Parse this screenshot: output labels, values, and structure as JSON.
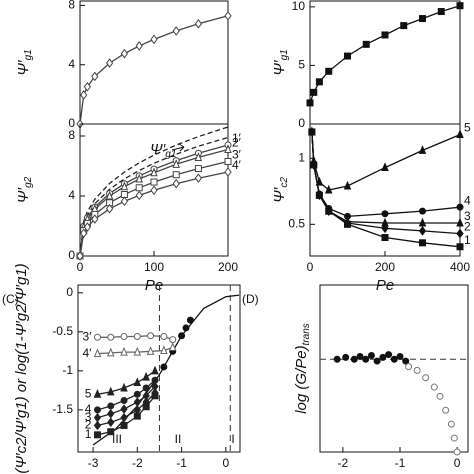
{
  "chart_data": [
    {
      "type": "scatter",
      "xlim": [
        0,
        200
      ],
      "ylim": [
        0,
        8.3
      ],
      "yticks": [
        0,
        4,
        8
      ],
      "y_label": "Ψ′",
      "y_label_sub": "g1",
      "series": [
        {
          "color": "#444444",
          "line": "solid",
          "marker": "open-diamond",
          "x": [
            0,
            5,
            10,
            20,
            40,
            60,
            80,
            100,
            130,
            160,
            200
          ],
          "values": [
            0,
            1.96,
            2.51,
            3.21,
            4.11,
            4.75,
            5.27,
            5.71,
            6.28,
            6.76,
            7.3
          ]
        }
      ]
    },
    {
      "type": "scatter",
      "xlim": [
        0,
        200
      ],
      "ylim": [
        0,
        8.8
      ],
      "xticks": [
        0,
        100,
        200
      ],
      "yticks": [
        0,
        4,
        8
      ],
      "x_label": "Pe",
      "y_label": "Ψ′",
      "y_label_sub": "g2",
      "annotations": [
        {
          "text": "Ψ′",
          "sub": "g1"
        }
      ],
      "series": [
        {
          "color": "#222222",
          "line": "dashed",
          "x": [
            0,
            5,
            10,
            20,
            40,
            60,
            80,
            100,
            130,
            160,
            200
          ],
          "values": [
            0,
            2.31,
            2.96,
            3.78,
            4.84,
            5.6,
            6.21,
            6.73,
            7.4,
            7.96,
            8.6
          ]
        },
        {
          "color": "#222222",
          "line": "dashed",
          "x": [
            0,
            5,
            10,
            20,
            40,
            60,
            80,
            100,
            130,
            160,
            200
          ],
          "values": [
            0,
            2.13,
            2.72,
            3.48,
            4.45,
            5.14,
            5.7,
            6.18,
            6.79,
            7.32,
            7.9
          ]
        },
        {
          "color": "#444444",
          "line": "solid",
          "marker": "open-circle",
          "label": "1′",
          "x": [
            0,
            5,
            10,
            20,
            40,
            60,
            80,
            100,
            130,
            160,
            200
          ],
          "values": [
            0,
            1.99,
            2.55,
            3.26,
            4.17,
            4.82,
            5.34,
            5.79,
            6.36,
            6.85,
            7.4
          ]
        },
        {
          "color": "#444444",
          "line": "solid",
          "marker": "open-triangle",
          "label": "2′",
          "x": [
            0,
            5,
            10,
            20,
            40,
            60,
            80,
            100,
            130,
            160,
            200
          ],
          "values": [
            0,
            1.91,
            2.44,
            3.12,
            4.0,
            4.62,
            5.13,
            5.55,
            6.11,
            6.57,
            7.1
          ]
        },
        {
          "color": "#444444",
          "line": "solid",
          "marker": "open-square",
          "label": "3′",
          "x": [
            0,
            5,
            10,
            20,
            40,
            60,
            80,
            100,
            130,
            160,
            200
          ],
          "values": [
            0,
            1.69,
            2.17,
            2.77,
            3.55,
            4.1,
            4.55,
            4.93,
            5.42,
            5.83,
            6.3
          ]
        },
        {
          "color": "#444444",
          "line": "solid",
          "marker": "open-diamond",
          "label": "4′",
          "x": [
            0,
            5,
            10,
            20,
            40,
            60,
            80,
            100,
            130,
            160,
            200
          ],
          "values": [
            0,
            1.51,
            1.93,
            2.46,
            3.15,
            3.65,
            4.04,
            4.38,
            4.82,
            5.19,
            5.6
          ]
        }
      ]
    },
    {
      "type": "scatter",
      "xlim": [
        0,
        400
      ],
      "ylim": [
        0,
        10.5
      ],
      "yticks": [
        0,
        5,
        10
      ],
      "y_label": "Ψ′",
      "y_label_sub": "g1",
      "series": [
        {
          "color": "#111111",
          "line": "solid",
          "marker": "filled-square",
          "x": [
            0,
            10,
            25,
            50,
            100,
            150,
            200,
            250,
            300,
            350,
            400
          ],
          "values": [
            1.8,
            2.7,
            3.6,
            4.5,
            5.8,
            6.8,
            7.6,
            8.4,
            9.0,
            9.6,
            10.1
          ]
        }
      ]
    },
    {
      "type": "scatter",
      "xlim": [
        0,
        400
      ],
      "ylim": [
        0.26,
        1.26
      ],
      "xticks": [
        0,
        200,
        400
      ],
      "yticks": [
        0.5,
        1
      ],
      "x_label": "Pe",
      "y_label": "Ψ′",
      "y_label_sub": "c2",
      "series": [
        {
          "color": "#111111",
          "line": "solid",
          "marker": "filled-square",
          "label": "1",
          "x": [
            5,
            10,
            25,
            50,
            100,
            200,
            300,
            400
          ],
          "values": [
            1.2,
            0.95,
            0.72,
            0.6,
            0.5,
            0.4,
            0.36,
            0.33
          ]
        },
        {
          "color": "#111111",
          "line": "solid",
          "marker": "filled-diamond",
          "label": "2",
          "x": [
            5,
            10,
            25,
            50,
            100,
            200,
            300,
            400
          ],
          "values": [
            1.2,
            0.95,
            0.72,
            0.6,
            0.51,
            0.47,
            0.45,
            0.43
          ]
        },
        {
          "color": "#111111",
          "line": "solid",
          "marker": "filled-triangle",
          "label": "3",
          "x": [
            5,
            10,
            25,
            50,
            100,
            200,
            300,
            400
          ],
          "values": [
            1.2,
            0.95,
            0.72,
            0.6,
            0.52,
            0.51,
            0.51,
            0.51
          ]
        },
        {
          "color": "#111111",
          "line": "solid",
          "marker": "filled-circle",
          "label": "4",
          "x": [
            5,
            10,
            25,
            50,
            100,
            200,
            300,
            400
          ],
          "values": [
            1.2,
            0.95,
            0.73,
            0.62,
            0.56,
            0.58,
            0.6,
            0.63
          ]
        },
        {
          "color": "#111111",
          "line": "solid",
          "marker": "filled-triangle",
          "label": "5",
          "x": [
            5,
            10,
            25,
            50,
            100,
            200,
            300,
            400
          ],
          "values": [
            1.2,
            0.98,
            0.82,
            0.76,
            0.79,
            0.93,
            1.06,
            1.18
          ]
        }
      ]
    },
    {
      "type": "scatter",
      "panel_label": "(C)",
      "xlim": [
        -3.34,
        0.32
      ],
      "ylim": [
        -2.04,
        0.1
      ],
      "xticks": [
        -3,
        -2,
        -1,
        0
      ],
      "yticks": [
        0,
        -0.5,
        -1,
        -1.5
      ],
      "y_label": "(Ψ′c2/Ψ′g1) or log(1-Ψ′g2/Ψ′g1)",
      "vlines": [
        -1.5,
        0.1
      ],
      "regions": [
        "III",
        "II",
        "I"
      ],
      "series": [
        {
          "color": "#111111",
          "line": "solid",
          "x": [
            -3,
            -2.5,
            -2,
            -1.5,
            -1,
            -0.5,
            0,
            0.3
          ],
          "values": [
            -1.95,
            -1.75,
            -1.45,
            -1.05,
            -0.55,
            -0.2,
            -0.05,
            -0.03
          ]
        },
        {
          "color": "#111111",
          "marker": "filled-circle",
          "x": [
            -1.4,
            -1.2,
            -1.0,
            -0.9,
            -0.8
          ],
          "values": [
            -0.95,
            -0.75,
            -0.55,
            -0.45,
            -0.35
          ]
        },
        {
          "color": "#222222",
          "line": "solid",
          "marker": "filled-triangle",
          "label": "5",
          "x": [
            -2.9,
            -2.6,
            -2.3,
            -2.0,
            -1.8,
            -1.6
          ],
          "values": [
            -1.3,
            -1.27,
            -1.22,
            -1.15,
            -1.08,
            -1.0
          ]
        },
        {
          "color": "#222222",
          "line": "solid",
          "marker": "filled-circle",
          "label": "4",
          "x": [
            -2.9,
            -2.6,
            -2.3,
            -2.0,
            -1.8,
            -1.6
          ],
          "values": [
            -1.5,
            -1.45,
            -1.38,
            -1.3,
            -1.22,
            -1.12
          ]
        },
        {
          "color": "#222222",
          "line": "solid",
          "marker": "filled-diamond",
          "label": "3",
          "x": [
            -2.9,
            -2.6,
            -2.3,
            -2.0,
            -1.8,
            -1.6
          ],
          "values": [
            -1.6,
            -1.55,
            -1.49,
            -1.4,
            -1.32,
            -1.2
          ]
        },
        {
          "color": "#222222",
          "line": "solid",
          "marker": "filled-diamond",
          "label": "2",
          "x": [
            -2.9,
            -2.6,
            -2.3,
            -2.0,
            -1.8,
            -1.6
          ],
          "values": [
            -1.7,
            -1.66,
            -1.6,
            -1.5,
            -1.4,
            -1.28
          ]
        },
        {
          "color": "#222222",
          "line": "solid",
          "marker": "filled-square",
          "label": "1",
          "x": [
            -2.9,
            -2.6,
            -2.3,
            -2.0,
            -1.8,
            -1.6
          ],
          "values": [
            -1.82,
            -1.78,
            -1.7,
            -1.58,
            -1.46,
            -1.32
          ]
        },
        {
          "color": "#666666",
          "line": "solid",
          "marker": "open-circle",
          "label": "3′",
          "x": [
            -2.9,
            -2.6,
            -2.3,
            -2.0,
            -1.7,
            -1.4,
            -1.2
          ],
          "values": [
            -0.57,
            -0.57,
            -0.56,
            -0.56,
            -0.55,
            -0.56,
            -0.6
          ]
        },
        {
          "color": "#666666",
          "line": "solid",
          "marker": "open-triangle",
          "label": "4′",
          "x": [
            -2.9,
            -2.6,
            -2.3,
            -2.0,
            -1.7,
            -1.4,
            -1.2
          ],
          "values": [
            -0.78,
            -0.77,
            -0.76,
            -0.76,
            -0.75,
            -0.74,
            -0.7
          ]
        }
      ]
    },
    {
      "type": "scatter",
      "panel_label": "(D)",
      "xlim": [
        -2.4,
        0.19
      ],
      "ylim": [
        -1.6,
        0.2
      ],
      "xticks": [
        -2,
        -1,
        0
      ],
      "y_label": "log (G/Pe)",
      "y_label_sub": "trans",
      "hlines": [
        -0.6
      ],
      "series": [
        {
          "color": "#111111",
          "marker": "filled-circle",
          "x": [
            -2.1,
            -1.95,
            -1.8,
            -1.7,
            -1.6,
            -1.5,
            -1.4,
            -1.3,
            -1.2,
            -1.1,
            -1.0,
            -0.9
          ],
          "values": [
            -0.6,
            -0.58,
            -0.6,
            -0.57,
            -0.6,
            -0.56,
            -0.62,
            -0.58,
            -0.55,
            -0.6,
            -0.57,
            -0.62
          ]
        },
        {
          "color": "#777777",
          "marker": "open-circle",
          "x": [
            -0.85,
            -0.7,
            -0.55,
            -0.4,
            -0.3,
            -0.2,
            -0.1,
            -0.05,
            0.0
          ],
          "values": [
            -0.68,
            -0.72,
            -0.8,
            -0.9,
            -1.0,
            -1.15,
            -1.3,
            -1.45,
            -1.6
          ]
        }
      ]
    }
  ]
}
